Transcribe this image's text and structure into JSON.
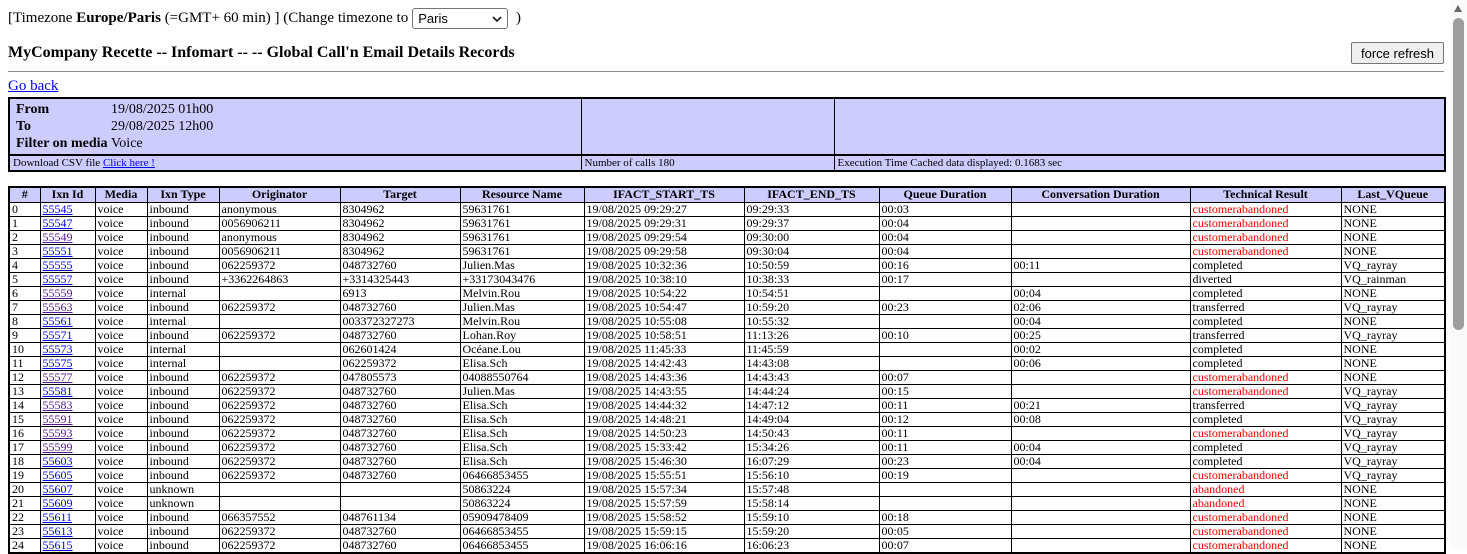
{
  "timezone_bar": {
    "prefix": "[Timezone ",
    "tz_name": "Europe/Paris",
    "mid": " (=GMT+ 60 min) ] (Change timezone to",
    "select_value": "Paris",
    "close_paren": " )"
  },
  "header": {
    "title": "MyCompany Recette -- Infomart -- -- Global Call'n Email Details Records",
    "force_refresh_label": "force refresh"
  },
  "go_back_label": "Go back",
  "filters": {
    "from_label": "From",
    "from_value": "19/08/2025 01h00",
    "to_label": "To",
    "to_value": "29/08/2025 12h00",
    "media_label": "Filter on media",
    "media_value": "Voice",
    "download_label": "Download CSV file ",
    "download_link": "Click here !",
    "calls_label": "Number of calls 180",
    "execution_label": "Execution Time Cached data displayed: 0.1683 sec"
  },
  "colors": {
    "panel_bg": "#CCCCFF",
    "link": "#0000EE",
    "visited_link": "#551A8B",
    "result_error": "#FF0000"
  },
  "table": {
    "columns": [
      "#",
      "Ixn Id",
      "Media",
      "Ixn Type",
      "Originator",
      "Target",
      "Resource Name",
      "IFACT_START_TS",
      "IFACT_END_TS",
      "Queue Duration",
      "Conversation Duration",
      "Technical Result",
      "Last_VQueue"
    ],
    "result_colors": {
      "customerabandoned": "#FF0000",
      "abandoned": "#FF0000",
      "completed": "#000000",
      "diverted": "#000000",
      "transferred": "#000000"
    },
    "rows": [
      {
        "idx": "0",
        "ixn_id": "55545",
        "visited": false,
        "media": "voice",
        "ixn_type": "inbound",
        "originator": "anonymous",
        "target": "8304962",
        "resource": "59631761",
        "start_ts": "19/08/2025 09:29:27",
        "end_ts": "09:29:33",
        "queue_dur": "00:03",
        "conv_dur": "",
        "result": "customerabandoned",
        "last_vqueue": "NONE"
      },
      {
        "idx": "1",
        "ixn_id": "55547",
        "visited": false,
        "media": "voice",
        "ixn_type": "inbound",
        "originator": "0056906211",
        "target": "8304962",
        "resource": "59631761",
        "start_ts": "19/08/2025 09:29:31",
        "end_ts": "09:29:37",
        "queue_dur": "00:04",
        "conv_dur": "",
        "result": "customerabandoned",
        "last_vqueue": "NONE"
      },
      {
        "idx": "2",
        "ixn_id": "55549",
        "visited": true,
        "media": "voice",
        "ixn_type": "inbound",
        "originator": "anonymous",
        "target": "8304962",
        "resource": "59631761",
        "start_ts": "19/08/2025 09:29:54",
        "end_ts": "09:30:00",
        "queue_dur": "00:04",
        "conv_dur": "",
        "result": "customerabandoned",
        "last_vqueue": "NONE"
      },
      {
        "idx": "3",
        "ixn_id": "55551",
        "visited": false,
        "media": "voice",
        "ixn_type": "inbound",
        "originator": "0056906211",
        "target": "8304962",
        "resource": "59631761",
        "start_ts": "19/08/2025 09:29:58",
        "end_ts": "09:30:04",
        "queue_dur": "00:04",
        "conv_dur": "",
        "result": "customerabandoned",
        "last_vqueue": "NONE"
      },
      {
        "idx": "4",
        "ixn_id": "55555",
        "visited": false,
        "media": "voice",
        "ixn_type": "inbound",
        "originator": "062259372",
        "target": "048732760",
        "resource": "Julien.Mas",
        "start_ts": "19/08/2025 10:32:36",
        "end_ts": "10:50:59",
        "queue_dur": "00:16",
        "conv_dur": "00:11",
        "result": "completed",
        "last_vqueue": "VQ_rayray"
      },
      {
        "idx": "5",
        "ixn_id": "55557",
        "visited": false,
        "media": "voice",
        "ixn_type": "inbound",
        "originator": "+3362264863",
        "target": "+3314325443",
        "resource": "+33173043476",
        "start_ts": "19/08/2025 10:38:10",
        "end_ts": "10:38:33",
        "queue_dur": "00:17",
        "conv_dur": "",
        "result": "diverted",
        "last_vqueue": "VQ_rainman"
      },
      {
        "idx": "6",
        "ixn_id": "55559",
        "visited": true,
        "media": "voice",
        "ixn_type": "internal",
        "originator": "",
        "target": "6913",
        "resource": "Melvin.Rou",
        "start_ts": "19/08/2025 10:54:22",
        "end_ts": "10:54:51",
        "queue_dur": "",
        "conv_dur": "00:04",
        "result": "completed",
        "last_vqueue": "NONE"
      },
      {
        "idx": "7",
        "ixn_id": "55563",
        "visited": true,
        "media": "voice",
        "ixn_type": "inbound",
        "originator": "062259372",
        "target": "048732760",
        "resource": "Julien.Mas",
        "start_ts": "19/08/2025 10:54:47",
        "end_ts": "10:59:20",
        "queue_dur": "00:23",
        "conv_dur": "02:06",
        "result": "transferred",
        "last_vqueue": "VQ_rayray"
      },
      {
        "idx": "8",
        "ixn_id": "55561",
        "visited": false,
        "media": "voice",
        "ixn_type": "internal",
        "originator": "",
        "target": "003372327273",
        "resource": "Melvin.Rou",
        "start_ts": "19/08/2025 10:55:08",
        "end_ts": "10:55:32",
        "queue_dur": "",
        "conv_dur": "00:04",
        "result": "completed",
        "last_vqueue": "NONE"
      },
      {
        "idx": "9",
        "ixn_id": "55571",
        "visited": false,
        "media": "voice",
        "ixn_type": "inbound",
        "originator": "062259372",
        "target": "048732760",
        "resource": "Lohan.Roy",
        "start_ts": "19/08/2025 10:58:51",
        "end_ts": "11:13:26",
        "queue_dur": "00:10",
        "conv_dur": "00:25",
        "result": "transferred",
        "last_vqueue": "VQ_rayray"
      },
      {
        "idx": "10",
        "ixn_id": "55573",
        "visited": false,
        "media": "voice",
        "ixn_type": "internal",
        "originator": "",
        "target": "062601424",
        "resource": "Océane.Lou",
        "start_ts": "19/08/2025 11:45:33",
        "end_ts": "11:45:59",
        "queue_dur": "",
        "conv_dur": "00:02",
        "result": "completed",
        "last_vqueue": "NONE"
      },
      {
        "idx": "11",
        "ixn_id": "55575",
        "visited": false,
        "media": "voice",
        "ixn_type": "internal",
        "originator": "",
        "target": "062259372",
        "resource": "Elisa.Sch",
        "start_ts": "19/08/2025 14:42:43",
        "end_ts": "14:43:08",
        "queue_dur": "",
        "conv_dur": "00:06",
        "result": "completed",
        "last_vqueue": "NONE"
      },
      {
        "idx": "12",
        "ixn_id": "55577",
        "visited": true,
        "media": "voice",
        "ixn_type": "inbound",
        "originator": "062259372",
        "target": "047805573",
        "resource": "04088550764",
        "start_ts": "19/08/2025 14:43:36",
        "end_ts": "14:43:43",
        "queue_dur": "00:07",
        "conv_dur": "",
        "result": "customerabandoned",
        "last_vqueue": "NONE"
      },
      {
        "idx": "13",
        "ixn_id": "55581",
        "visited": false,
        "media": "voice",
        "ixn_type": "inbound",
        "originator": "062259372",
        "target": "048732760",
        "resource": "Julien.Mas",
        "start_ts": "19/08/2025 14:43:55",
        "end_ts": "14:44:24",
        "queue_dur": "00:15",
        "conv_dur": "",
        "result": "customerabandoned",
        "last_vqueue": "VQ_rayray"
      },
      {
        "idx": "14",
        "ixn_id": "55583",
        "visited": true,
        "media": "voice",
        "ixn_type": "inbound",
        "originator": "062259372",
        "target": "048732760",
        "resource": "Elisa.Sch",
        "start_ts": "19/08/2025 14:44:32",
        "end_ts": "14:47:12",
        "queue_dur": "00:11",
        "conv_dur": "00:21",
        "result": "transferred",
        "last_vqueue": "VQ_rayray"
      },
      {
        "idx": "15",
        "ixn_id": "55591",
        "visited": true,
        "media": "voice",
        "ixn_type": "inbound",
        "originator": "062259372",
        "target": "048732760",
        "resource": "Elisa.Sch",
        "start_ts": "19/08/2025 14:48:21",
        "end_ts": "14:49:04",
        "queue_dur": "00:12",
        "conv_dur": "00:08",
        "result": "completed",
        "last_vqueue": "VQ_rayray"
      },
      {
        "idx": "16",
        "ixn_id": "55593",
        "visited": true,
        "media": "voice",
        "ixn_type": "inbound",
        "originator": "062259372",
        "target": "048732760",
        "resource": "Elisa.Sch",
        "start_ts": "19/08/2025 14:50:23",
        "end_ts": "14:50:43",
        "queue_dur": "00:11",
        "conv_dur": "",
        "result": "customerabandoned",
        "last_vqueue": "VQ_rayray"
      },
      {
        "idx": "17",
        "ixn_id": "55599",
        "visited": true,
        "media": "voice",
        "ixn_type": "inbound",
        "originator": "062259372",
        "target": "048732760",
        "resource": "Elisa.Sch",
        "start_ts": "19/08/2025 15:33:42",
        "end_ts": "15:34:26",
        "queue_dur": "00:11",
        "conv_dur": "00:04",
        "result": "completed",
        "last_vqueue": "VQ_rayray"
      },
      {
        "idx": "18",
        "ixn_id": "55603",
        "visited": false,
        "media": "voice",
        "ixn_type": "inbound",
        "originator": "062259372",
        "target": "048732760",
        "resource": "Elisa.Sch",
        "start_ts": "19/08/2025 15:46:30",
        "end_ts": "16:07:29",
        "queue_dur": "00:23",
        "conv_dur": "00:04",
        "result": "completed",
        "last_vqueue": "VQ_rayray"
      },
      {
        "idx": "19",
        "ixn_id": "55605",
        "visited": false,
        "media": "voice",
        "ixn_type": "inbound",
        "originator": "062259372",
        "target": "048732760",
        "resource": "06466853455",
        "start_ts": "19/08/2025 15:55:51",
        "end_ts": "15:56:10",
        "queue_dur": "00:19",
        "conv_dur": "",
        "result": "customerabandoned",
        "last_vqueue": "VQ_rayray"
      },
      {
        "idx": "20",
        "ixn_id": "55607",
        "visited": false,
        "media": "voice",
        "ixn_type": "unknown",
        "originator": "",
        "target": "",
        "resource": "50863224",
        "start_ts": "19/08/2025 15:57:34",
        "end_ts": "15:57:48",
        "queue_dur": "",
        "conv_dur": "",
        "result": "abandoned",
        "last_vqueue": "NONE"
      },
      {
        "idx": "21",
        "ixn_id": "55609",
        "visited": false,
        "media": "voice",
        "ixn_type": "unknown",
        "originator": "",
        "target": "",
        "resource": "50863224",
        "start_ts": "19/08/2025 15:57:59",
        "end_ts": "15:58:14",
        "queue_dur": "",
        "conv_dur": "",
        "result": "abandoned",
        "last_vqueue": "NONE"
      },
      {
        "idx": "22",
        "ixn_id": "55611",
        "visited": false,
        "media": "voice",
        "ixn_type": "inbound",
        "originator": "066357552",
        "target": "048761134",
        "resource": "05909478409",
        "start_ts": "19/08/2025 15:58:52",
        "end_ts": "15:59:10",
        "queue_dur": "00:18",
        "conv_dur": "",
        "result": "customerabandoned",
        "last_vqueue": "NONE"
      },
      {
        "idx": "23",
        "ixn_id": "55613",
        "visited": false,
        "media": "voice",
        "ixn_type": "inbound",
        "originator": "062259372",
        "target": "048732760",
        "resource": "06466853455",
        "start_ts": "19/08/2025 15:59:15",
        "end_ts": "15:59:20",
        "queue_dur": "00:05",
        "conv_dur": "",
        "result": "customerabandoned",
        "last_vqueue": "NONE"
      },
      {
        "idx": "24",
        "ixn_id": "55615",
        "visited": false,
        "media": "voice",
        "ixn_type": "inbound",
        "originator": "062259372",
        "target": "048732760",
        "resource": "06466853455",
        "start_ts": "19/08/2025 16:06:16",
        "end_ts": "16:06:23",
        "queue_dur": "00:07",
        "conv_dur": "",
        "result": "customerabandoned",
        "last_vqueue": "NONE"
      }
    ]
  }
}
